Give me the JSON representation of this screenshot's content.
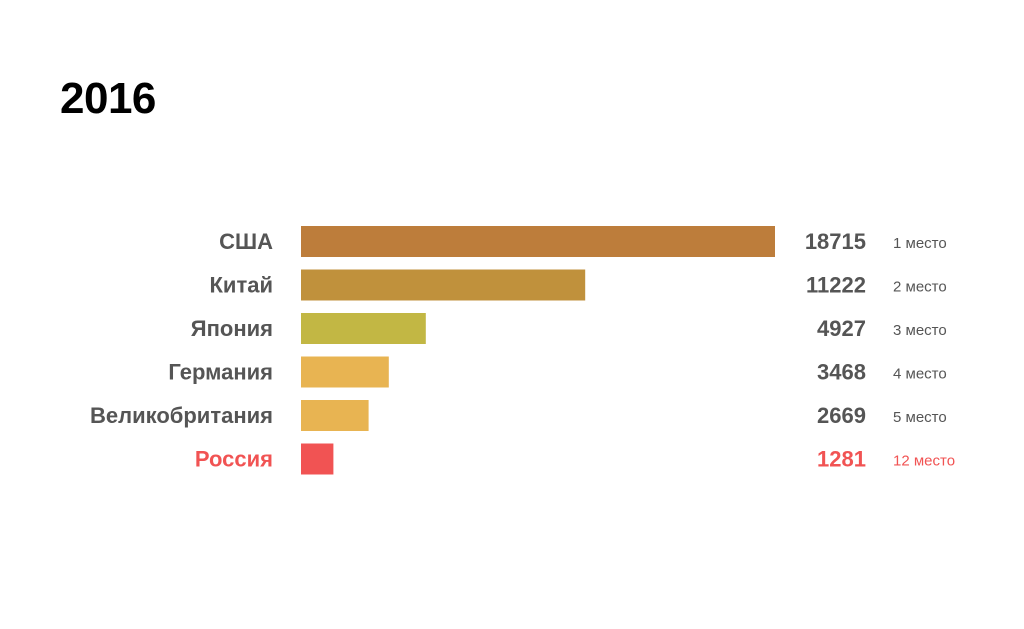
{
  "title": "2016",
  "chart_data": {
    "type": "bar",
    "orientation": "horizontal",
    "title": "2016",
    "categories": [
      "США",
      "Китай",
      "Япония",
      "Германия",
      "Великобритания",
      "Россия"
    ],
    "values": [
      18715,
      11222,
      4927,
      3468,
      2669,
      1281
    ],
    "value_labels": [
      "18715",
      "11222",
      "4927",
      "3468",
      "2669",
      "1281"
    ],
    "rank_labels": [
      "1 место",
      "2 место",
      "3 место",
      "4 место",
      "5 место",
      "12 место"
    ],
    "bar_colors": [
      "#BD7D3B",
      "#C0913C",
      "#C2B744",
      "#E8B452",
      "#E8B452",
      "#F15353"
    ],
    "label_colors": [
      "#555555",
      "#555555",
      "#555555",
      "#555555",
      "#555555",
      "#F15353"
    ],
    "rank_colors": [
      "#555555",
      "#555555",
      "#555555",
      "#555555",
      "#555555",
      "#F15353"
    ],
    "xlim": [
      0,
      18715
    ],
    "grid": false,
    "legend": "none"
  }
}
